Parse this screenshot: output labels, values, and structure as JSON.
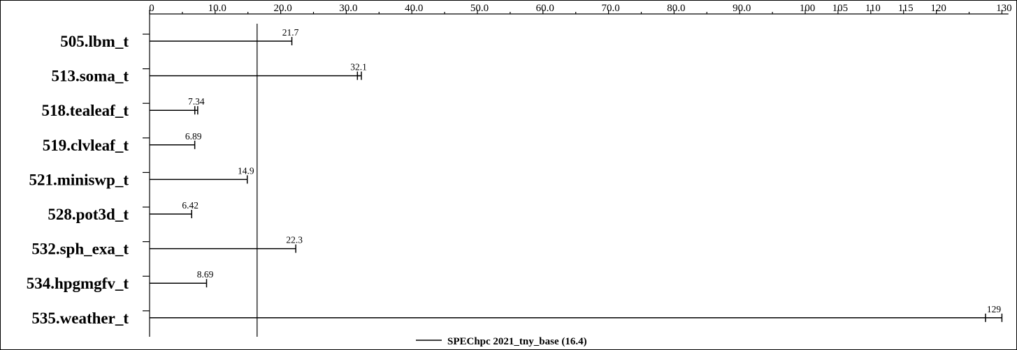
{
  "chart_data": {
    "type": "bar",
    "orientation": "horizontal",
    "categories": [
      "505.lbm_t",
      "513.soma_t",
      "518.tealeaf_t",
      "519.clvleaf_t",
      "521.miniswp_t",
      "528.pot3d_t",
      "532.sph_exa_t",
      "534.hpgmgfv_t",
      "535.weather_t"
    ],
    "series": [
      {
        "name": "SPEChpc 2021_tny_base (16.4)",
        "values": [
          21.7,
          32.1,
          7.34,
          6.89,
          14.9,
          6.42,
          22.3,
          8.69,
          129
        ],
        "value_labels": [
          "21.7",
          "32.1",
          "7.34",
          "6.89",
          "14.9",
          "6.42",
          "22.3",
          "8.69",
          "129"
        ],
        "run_min": [
          21.7,
          31.7,
          6.9,
          6.89,
          14.9,
          6.42,
          22.3,
          8.69,
          127.5
        ],
        "run_max": [
          21.7,
          32.3,
          7.34,
          6.89,
          14.9,
          6.42,
          22.3,
          8.69,
          130
        ]
      }
    ],
    "reference_line": 16.4,
    "xlim": [
      0,
      131
    ],
    "x_ticks": [
      {
        "value": 0,
        "label": "0"
      },
      {
        "value": 10,
        "label": "10.0"
      },
      {
        "value": 20,
        "label": "20.0"
      },
      {
        "value": 30,
        "label": "30.0"
      },
      {
        "value": 40,
        "label": "40.0"
      },
      {
        "value": 50,
        "label": "50.0"
      },
      {
        "value": 60,
        "label": "60.0"
      },
      {
        "value": 70,
        "label": "70.0"
      },
      {
        "value": 80,
        "label": "80.0"
      },
      {
        "value": 90,
        "label": "90.0"
      },
      {
        "value": 100,
        "label": "100"
      },
      {
        "value": 105,
        "label": "105"
      },
      {
        "value": 110,
        "label": "110"
      },
      {
        "value": 115,
        "label": "115"
      },
      {
        "value": 120,
        "label": "120"
      },
      {
        "value": 130,
        "label": "130"
      }
    ],
    "minor_ticks": [
      5,
      15,
      25,
      35,
      45,
      55,
      65,
      75,
      85,
      95,
      125
    ],
    "title": "",
    "xlabel": "",
    "ylabel": "",
    "legend": "bottom-center",
    "grid": false
  }
}
